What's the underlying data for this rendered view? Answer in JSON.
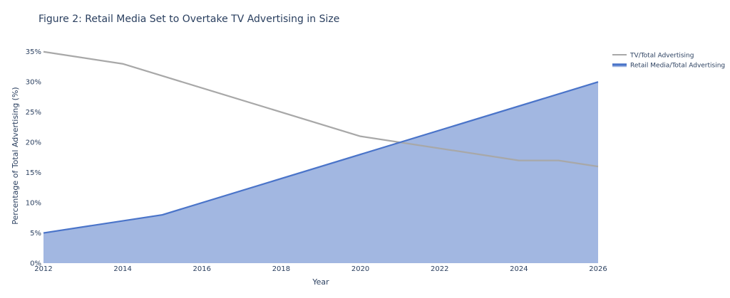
{
  "chart_data": {
    "type": "area",
    "title": "Figure 2: Retail Media Set to Overtake TV Advertising in Size",
    "xlabel": "Year",
    "ylabel": "Percentage of Total Advertising (%)",
    "xlim": [
      2012,
      2026
    ],
    "ylim": [
      0,
      36.5
    ],
    "x_ticks": [
      2012,
      2014,
      2016,
      2018,
      2020,
      2022,
      2024,
      2026
    ],
    "y_ticks": [
      0,
      5,
      10,
      15,
      20,
      25,
      30,
      35
    ],
    "y_tick_labels": [
      "0%",
      "5%",
      "10%",
      "15%",
      "20%",
      "25%",
      "30%",
      "35%"
    ],
    "grid": false,
    "legend_position": "top-right",
    "series": [
      {
        "name": "TV/Total Advertising",
        "style": "line",
        "color": "#a8a8a8",
        "x": [
          2012,
          2014,
          2015,
          2020,
          2024,
          2025,
          2026
        ],
        "y": [
          35,
          33,
          31,
          21,
          17,
          17,
          16
        ]
      },
      {
        "name": "Retail Media/Total Advertising",
        "style": "area",
        "color": "#4a74c9",
        "fill_color": "#a2b7e1",
        "x": [
          2012,
          2015,
          2026
        ],
        "y": [
          5,
          8,
          30
        ]
      }
    ]
  }
}
